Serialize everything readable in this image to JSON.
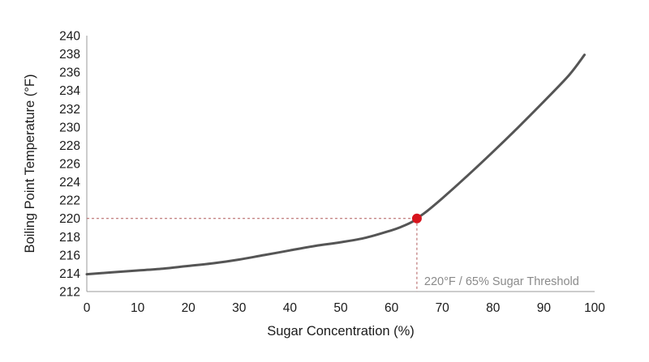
{
  "chart_data": {
    "type": "line",
    "title": "",
    "xlabel": "Sugar Concentration (%)",
    "ylabel": "Boiling Point Temperature (°F)",
    "xlim": [
      0,
      100
    ],
    "ylim": [
      212,
      240
    ],
    "xticks": [
      0,
      10,
      20,
      30,
      40,
      50,
      60,
      70,
      80,
      90,
      100
    ],
    "yticks": [
      212,
      214,
      216,
      218,
      220,
      222,
      224,
      226,
      228,
      230,
      232,
      234,
      236,
      238,
      240
    ],
    "grid": false,
    "legend": "none",
    "series": [
      {
        "color": "#555555",
        "x": [
          0,
          5,
          10,
          15,
          20,
          25,
          30,
          35,
          40,
          45,
          50,
          55,
          60,
          62,
          64,
          65,
          67,
          70,
          75,
          80,
          85,
          90,
          95,
          98
        ],
        "y": [
          213.9,
          214.1,
          214.3,
          214.5,
          214.8,
          215.1,
          215.5,
          216.0,
          216.5,
          217.0,
          217.4,
          217.9,
          218.7,
          219.1,
          219.6,
          220.0,
          220.8,
          222.2,
          224.7,
          227.3,
          230.0,
          232.8,
          235.7,
          237.9
        ]
      }
    ],
    "annotations": [
      {
        "type": "point",
        "x": 65,
        "y": 220,
        "color": "#d7141d",
        "guide_line_color": "#b05a5a",
        "label": "220°F / 65% Sugar Threshold"
      }
    ]
  }
}
